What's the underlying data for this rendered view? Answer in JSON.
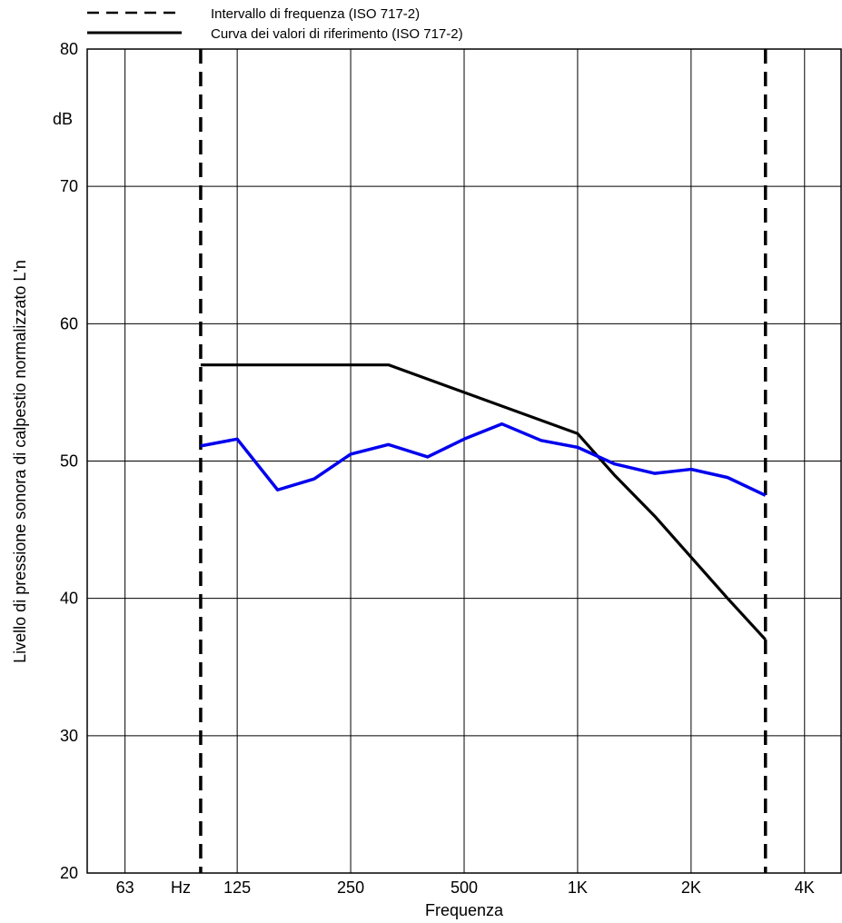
{
  "chart_data": {
    "type": "line",
    "legend": {
      "placement": "top",
      "entries": [
        {
          "label": "Intervallo di frequenza (ISO 717-2)",
          "style": "dashed",
          "color": "#000000"
        },
        {
          "label": "Curva dei valori di riferimento (ISO 717-2)",
          "style": "solid",
          "color": "#000000"
        }
      ]
    },
    "xlabel": "Frequenza",
    "ylabel": "Livello di pressione sonora di calpestio normalizzato L'n",
    "yunit": "dB",
    "xunit": "Hz",
    "x_scale": "log",
    "xlim": [
      50,
      5000
    ],
    "ylim": [
      20,
      80
    ],
    "grid": true,
    "y_ticks": [
      20,
      30,
      40,
      50,
      60,
      70,
      80
    ],
    "x_ticks": [
      {
        "value": 63,
        "label": "63"
      },
      {
        "value": 125,
        "label": "125"
      },
      {
        "value": 250,
        "label": "250"
      },
      {
        "value": 500,
        "label": "500"
      },
      {
        "value": 1000,
        "label": "1K"
      },
      {
        "value": 2000,
        "label": "2K"
      },
      {
        "value": 4000,
        "label": "4K"
      }
    ],
    "x_gridlines": [
      63,
      125,
      250,
      500,
      1000,
      2000,
      4000
    ],
    "frequency_range": {
      "start": 100,
      "end": 3150,
      "color": "#000000"
    },
    "series": [
      {
        "role": "reference",
        "color": "#000000",
        "x": [
          100,
          315,
          1000,
          1250,
          1600,
          2000,
          2500,
          3150
        ],
        "y": [
          57,
          57,
          52,
          49,
          46,
          43,
          40,
          37
        ]
      },
      {
        "role": "measured",
        "color": "#0000ee",
        "x": [
          100,
          125,
          160,
          200,
          250,
          315,
          400,
          500,
          630,
          800,
          1000,
          1250,
          1600,
          2000,
          2500,
          3150
        ],
        "y": [
          51.1,
          51.6,
          47.9,
          48.7,
          50.5,
          51.2,
          50.3,
          51.6,
          52.7,
          51.5,
          51.0,
          49.8,
          49.1,
          49.4,
          48.8,
          47.5
        ]
      }
    ]
  }
}
